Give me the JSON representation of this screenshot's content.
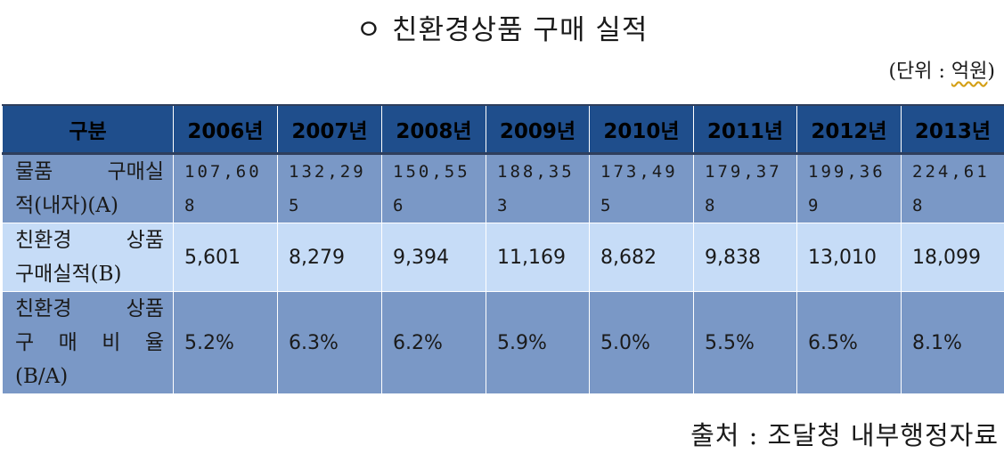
{
  "title": "ㅇ 친환경상품 구매 실적",
  "unit": {
    "prefix": "(단위 : ",
    "value": "억원",
    "suffix": ")"
  },
  "table": {
    "headers": [
      "구분",
      "2006년",
      "2007년",
      "2008년",
      "2009년",
      "2010년",
      "2011년",
      "2012년",
      "2013년"
    ],
    "rows": [
      {
        "label_lines": [
          [
            "물품",
            "구매실"
          ],
          [
            "적(내자)(A)"
          ]
        ],
        "values": [
          "107,608",
          "132,295",
          "150,556",
          "188,353",
          "173,495",
          "179,378",
          "199,369",
          "224,618"
        ]
      },
      {
        "label_lines": [
          [
            "친환경",
            "상품"
          ],
          [
            "구매실적(B)"
          ]
        ],
        "values": [
          "5,601",
          "8,279",
          "9,394",
          "11,169",
          "8,682",
          "9,838",
          "13,010",
          "18,099"
        ]
      },
      {
        "label_lines": [
          [
            "친환경",
            "상품"
          ],
          [
            "구",
            "매",
            "비",
            "율"
          ],
          [
            "(B/A)"
          ]
        ],
        "values": [
          "5.2%",
          "6.3%",
          "6.2%",
          "5.9%",
          "5.0%",
          "5.5%",
          "6.5%",
          "8.1%"
        ]
      }
    ]
  },
  "source": "출처 : 조달청 내부행정자료"
}
